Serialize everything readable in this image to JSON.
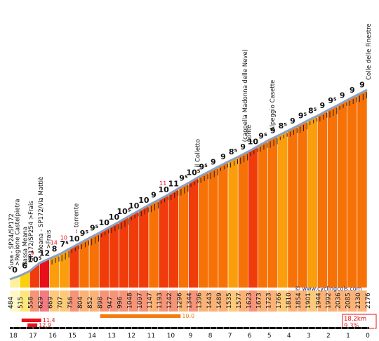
{
  "chart_data": {
    "type": "area",
    "x_unit": "km",
    "x_axis": {
      "direction": "descending",
      "ticks": [
        "18",
        "17",
        "16",
        "15",
        "14",
        "13",
        "12",
        "11",
        "10",
        "9",
        "8",
        "7",
        "6",
        "5",
        "4",
        "3",
        "2",
        "1",
        "0"
      ]
    },
    "altitude_labels": [
      "484",
      "515",
      "558",
      "629",
      "669",
      "707",
      "756",
      "804",
      "852",
      "898",
      "947",
      "996",
      "1048",
      "1097",
      "1147",
      "1193",
      "1242",
      "1296",
      "1344",
      "1396",
      "1443",
      "1489",
      "1535",
      "1577",
      "1623",
      "1673",
      "1723",
      "1766",
      "1810",
      "1854",
      "1901",
      "1944",
      "1992",
      "2036",
      "2085",
      "2130",
      "2176"
    ],
    "altitudes": [
      484,
      515,
      558,
      629,
      669,
      707,
      756,
      804,
      852,
      898,
      947,
      996,
      1048,
      1097,
      1147,
      1193,
      1242,
      1296,
      1344,
      1396,
      1443,
      1489,
      1535,
      1577,
      1623,
      1673,
      1723,
      1766,
      1810,
      1854,
      1901,
      1944,
      1992,
      2036,
      2085,
      2130,
      2176
    ],
    "gradient_labels": [
      "0",
      "6",
      "10⁵",
      "12",
      "8",
      "7⁵",
      "10",
      "9⁵",
      "9⁵",
      "10",
      "10",
      "10⁵",
      "10",
      "10",
      "9",
      "10",
      "11",
      "9⁵",
      "10⁵",
      "9⁵",
      "9",
      "9",
      "8⁵",
      "9",
      "10",
      "9⁵",
      "9",
      "8⁵",
      "9",
      "9⁵",
      "8⁵",
      "9",
      "9⁵",
      "9",
      "9",
      "9"
    ],
    "max_gradient_labels": [
      "9",
      "14",
      "10",
      "11"
    ],
    "waypoints": [
      {
        "km": 18.2,
        "label": "Susa - SP24/SP172"
      },
      {
        "km": 17.9,
        "label": ">Regione Castelpietra"
      },
      {
        "km": 17.5,
        "label": "Bassa Meana"
      },
      {
        "km": 17.2,
        "label": "SP172/SP254 >Frais"
      },
      {
        "km": 16.7,
        "label": "Meana - SP172/Via Mattiè"
      },
      {
        "km": 16.3,
        "label": ">Frais"
      },
      {
        "km": 14.9,
        "label": "-- torrente"
      },
      {
        "km": 8.7,
        "label": "il Colletto"
      },
      {
        "km": 6.3,
        "label": "(cappella Madonna delle Neve)"
      },
      {
        "km": 6.1,
        "label": "ponte"
      },
      {
        "km": 4.9,
        "label": "Alpeggio Casette"
      },
      {
        "km": 0.0,
        "label": "Colle delle Finestre"
      }
    ],
    "summary": {
      "length": "18.2km",
      "avg_gradient": "9.3%"
    },
    "bars": [
      {
        "label": "11.4",
        "from_km": 17.6,
        "to_km": 16.6,
        "row": 1
      },
      {
        "label": "12.9",
        "from_km": 17.3,
        "to_km": 16.8,
        "row": 2
      },
      {
        "label": "10.0",
        "from_km": 13.6,
        "to_km": 9.5,
        "row": 0
      }
    ],
    "watermark": "© www.cyclingcols.com",
    "colors": {
      "dark_red": "#e8101a",
      "red": "#ef3c0a",
      "orange": "#f77206",
      "light_orange": "#fb9e0c",
      "yellow": "#fbd10c",
      "pale_yellow": "#fdf19a",
      "sky": "#8aa2c4",
      "bar": "#f37a0c"
    }
  }
}
